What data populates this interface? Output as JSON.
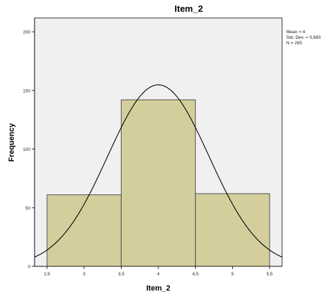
{
  "chart_data": {
    "type": "bar",
    "subtype": "histogram",
    "title": "Item_2",
    "xlabel": "Item_2",
    "ylabel": "Frequency",
    "bins": [
      {
        "x0": 2.5,
        "x1": 3.5,
        "value": 61
      },
      {
        "x0": 3.5,
        "x1": 4.5,
        "value": 142
      },
      {
        "x0": 4.5,
        "x1": 5.5,
        "value": 62
      }
    ],
    "xlim": [
      2.5,
      5.5
    ],
    "ylim": [
      0,
      200
    ],
    "x_ticks": [
      2.5,
      3,
      3.5,
      4,
      4.5,
      5,
      5.5
    ],
    "x_tick_labels": [
      "2,5",
      "3",
      "3,5",
      "4",
      "4,5",
      "5",
      "5,5"
    ],
    "y_ticks": [
      0,
      50,
      100,
      150,
      200
    ],
    "y_tick_labels": [
      "0",
      "50",
      "100",
      "150",
      "200"
    ],
    "normal_curve": {
      "mean": 4,
      "std_dev": 0.683,
      "n": 265,
      "bin_width": 1
    },
    "stats": [
      "Mean = 4",
      "Std. Dev. = 0,683",
      "N = 265"
    ],
    "grid": false,
    "colors": {
      "plot_background": "#f0f0f0",
      "bar_fill": "#d3ce9c",
      "bar_stroke": "#505050",
      "curve": "#000000",
      "axis": "#000000"
    }
  }
}
